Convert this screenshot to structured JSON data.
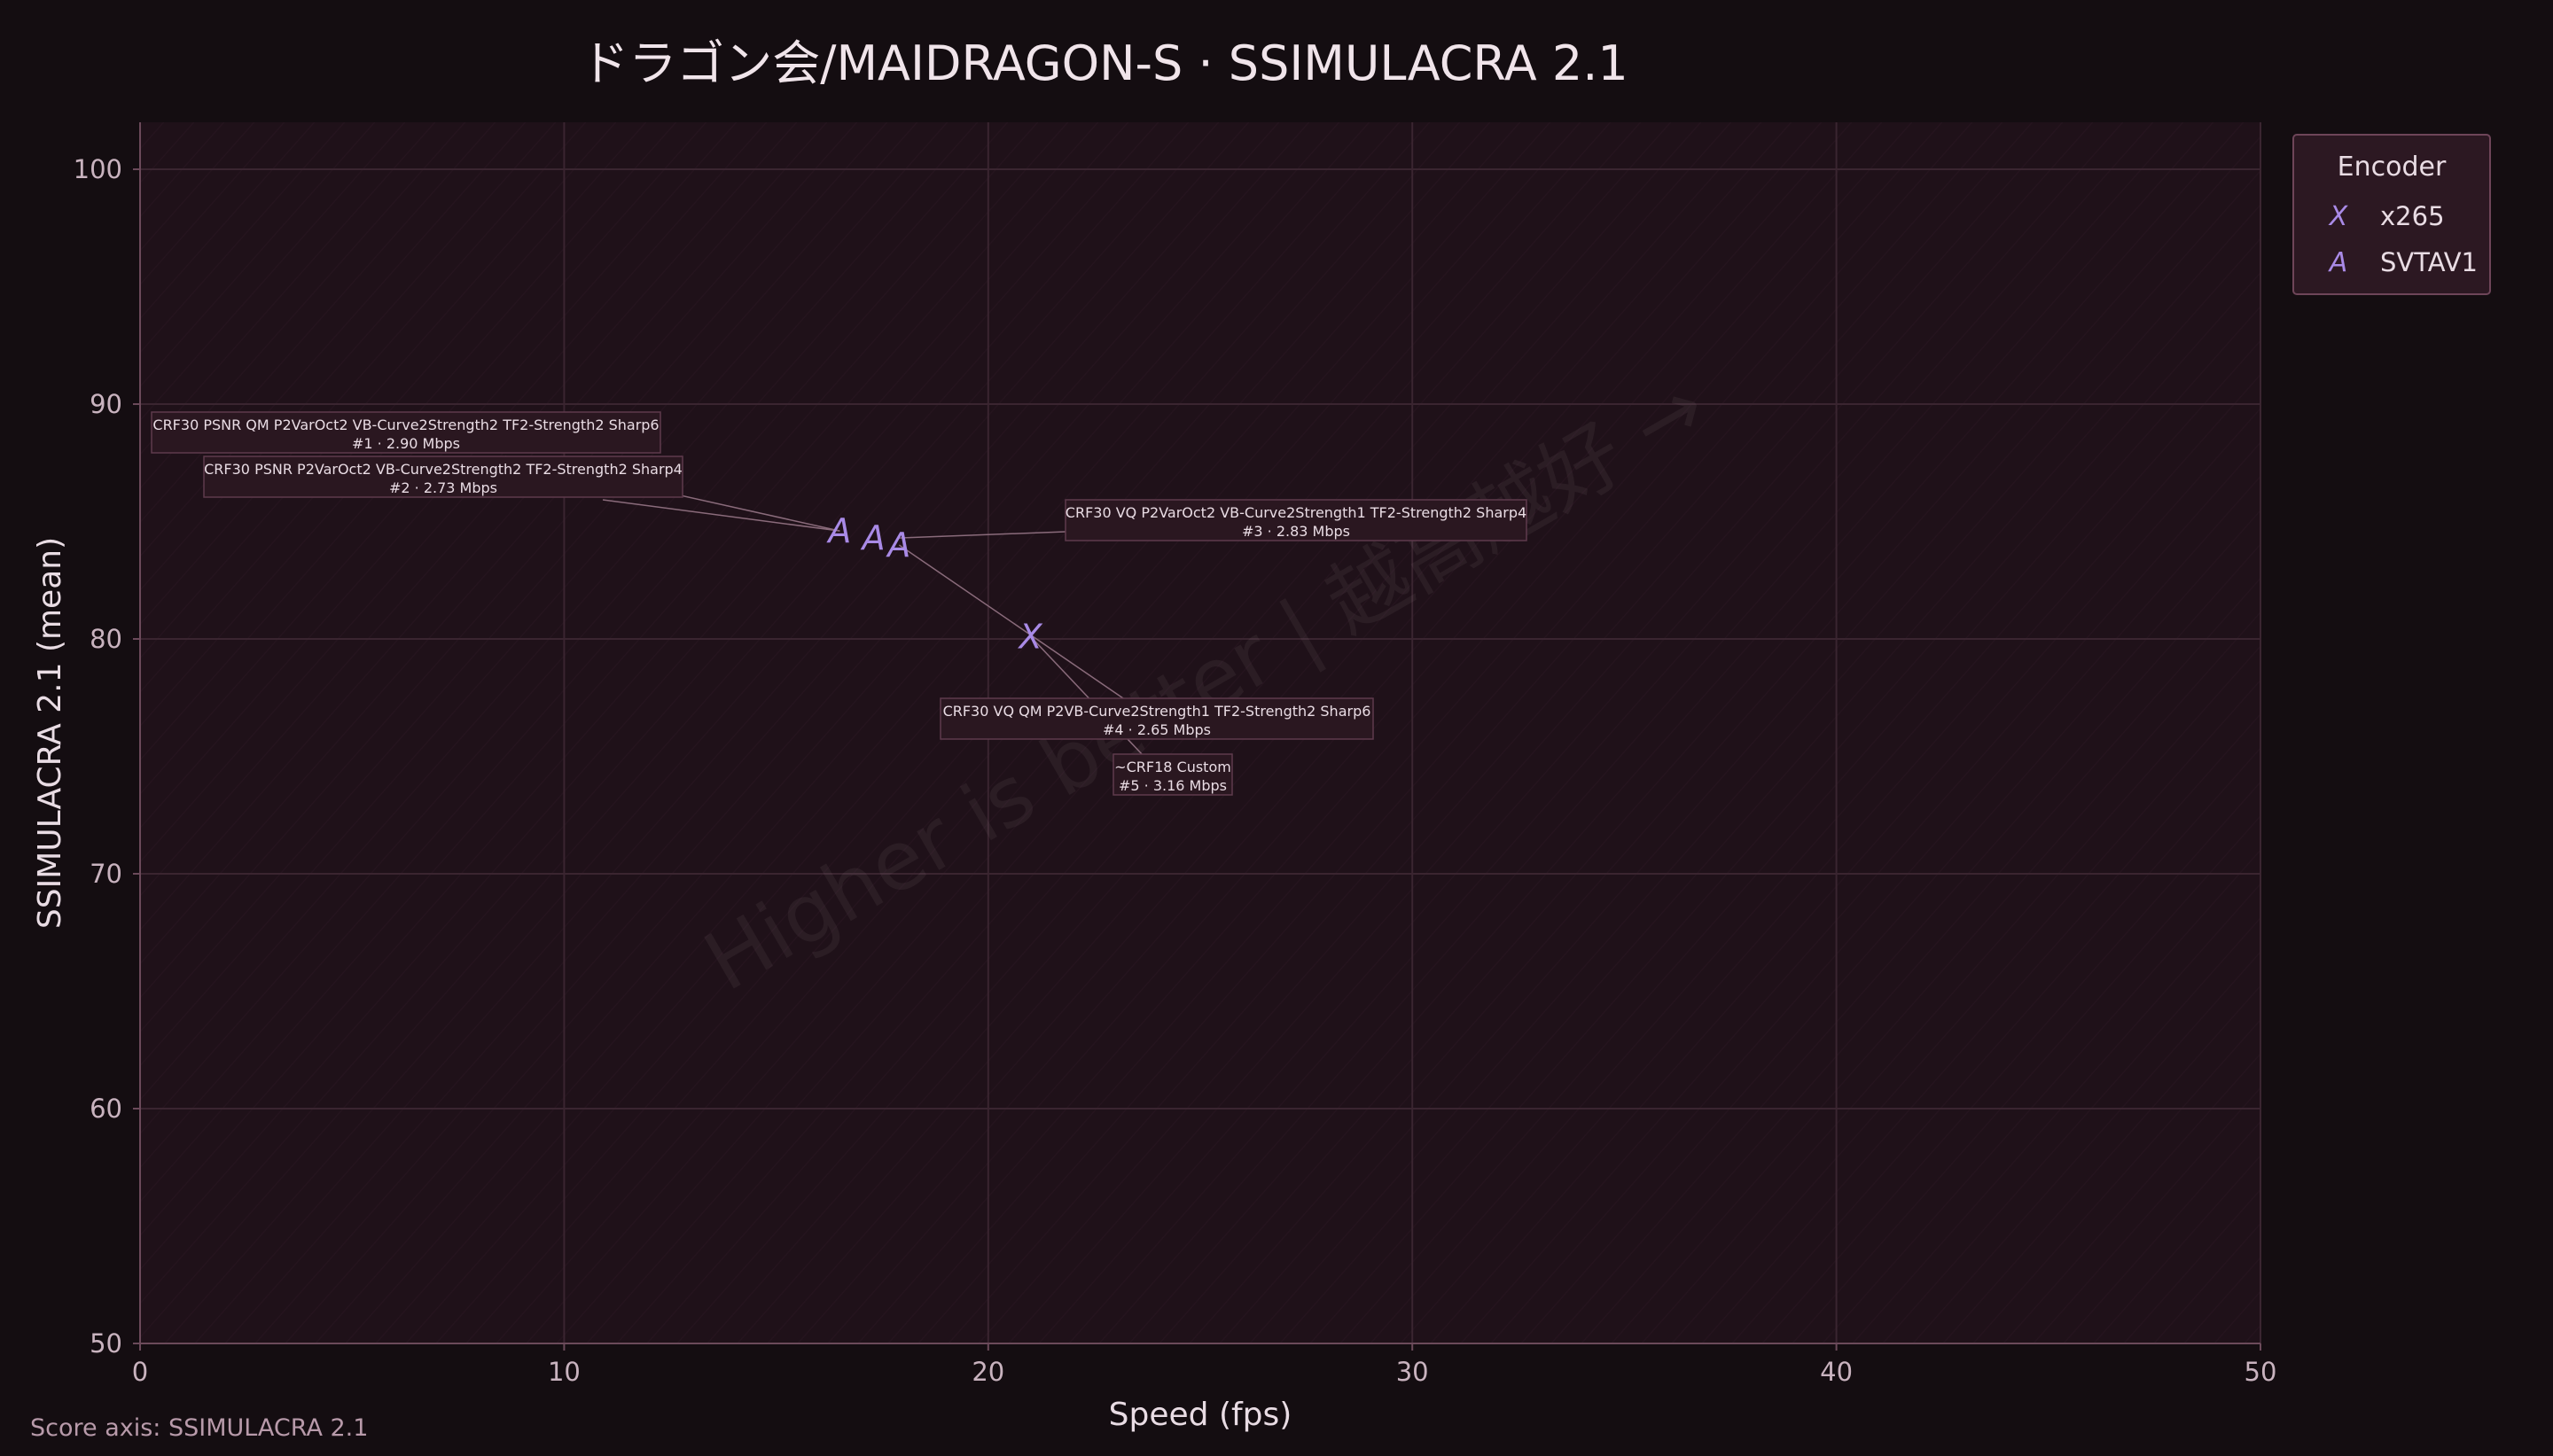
{
  "chart_data": {
    "type": "scatter",
    "title": "ドラゴン会/MAIDRAGON-S · SSIMULACRA 2.1",
    "xlabel": "Speed (fps)",
    "ylabel": "SSIMULACRA 2.1 (mean)",
    "xlim": [
      0,
      50
    ],
    "ylim": [
      50,
      102
    ],
    "xticks": [
      0,
      10,
      20,
      30,
      40,
      50
    ],
    "yticks": [
      50,
      60,
      70,
      80,
      90,
      100
    ],
    "grid": true,
    "legend": {
      "title": "Encoder",
      "placement": "outside-top-right",
      "entries": [
        {
          "marker": "X",
          "name": "x265",
          "color": "#a98ae6"
        },
        {
          "marker": "A",
          "name": "SVTAV1",
          "color": "#a98ae6"
        }
      ]
    },
    "series": [
      {
        "name": "x265",
        "marker": "X",
        "color": "#a98ae6",
        "points": [
          {
            "x": 21.0,
            "y": 80.1
          }
        ]
      },
      {
        "name": "SVTAV1",
        "marker": "A",
        "color": "#a98ae6",
        "points": [
          {
            "x": 16.5,
            "y": 84.6
          },
          {
            "x": 17.3,
            "y": 84.3
          },
          {
            "x": 17.9,
            "y": 84.0
          }
        ]
      }
    ],
    "annotations": [
      {
        "line1": "CRF30 PSNR QM P2VarOct2 VB-Curve2Strength2 TF2-Strength2 Sharp6",
        "line2": "#1 · 2.90 Mbps",
        "x": 16.5,
        "y": 84.6
      },
      {
        "line1": "CRF30 PSNR P2VarOct2 VB-Curve2Strength2 TF2-Strength2 Sharp4",
        "line2": "#2 · 2.73 Mbps",
        "x": 16.5,
        "y": 84.6
      },
      {
        "line1": "CRF30 VQ P2VarOct2 VB-Curve2Strength1 TF2-Strength2 Sharp4",
        "line2": "#3 · 2.83 Mbps",
        "x": 17.9,
        "y": 84.3
      },
      {
        "line1": "CRF30 VQ QM P2VB-Curve2Strength1 TF2-Strength2 Sharp6",
        "line2": "#4 · 2.65 Mbps",
        "x": 17.9,
        "y": 84.0
      },
      {
        "line1": "~CRF18 Custom",
        "line2": "#5 · 3.16 Mbps",
        "x": 21.0,
        "y": 80.1
      }
    ],
    "watermark": "Higher is better  |  越高越好  →",
    "footnote": "Score axis: SSIMULACRA 2.1"
  },
  "colors": {
    "background": "#140d11",
    "plot_bg": "#1f1119",
    "grid": "#3a2530",
    "text": "#e9dce4",
    "tick_text": "#c9b3bf",
    "marker": "#a98ae6",
    "annotation_bg": "#2a1720",
    "annotation_border": "#5e3a4c"
  }
}
